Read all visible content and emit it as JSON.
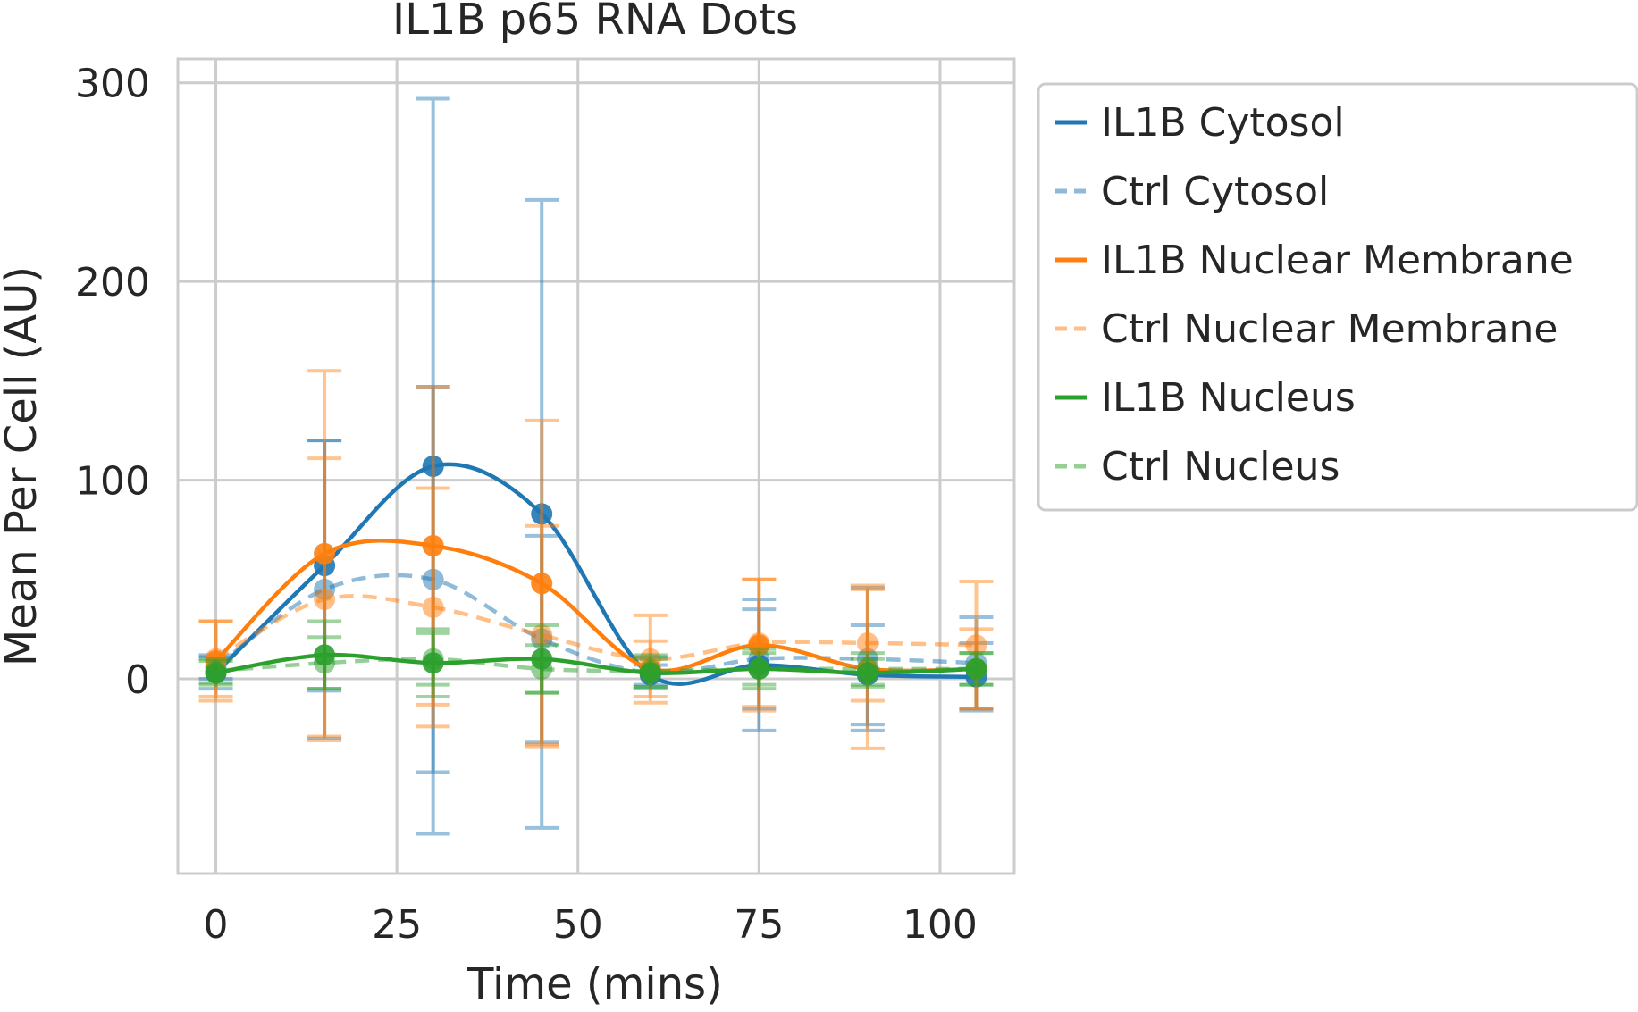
{
  "chart_data": {
    "type": "line",
    "title": "IL1B p65 RNA Dots",
    "xlabel": "Time (mins)",
    "ylabel": "Mean Per Cell (AU)",
    "x": [
      0,
      15,
      30,
      45,
      60,
      75,
      90,
      105
    ],
    "xlim": [
      -5.25,
      110.25
    ],
    "ylim": [
      -98,
      312
    ],
    "xticks": [
      0,
      25,
      50,
      75,
      100
    ],
    "yticks": [
      0,
      100,
      200,
      300
    ],
    "grid": true,
    "legend_position": "outside-right-top",
    "series": [
      {
        "name": "IL1B Cytosol",
        "color": "#1f77b4",
        "dashed": false,
        "faded": false,
        "values": [
          3,
          57,
          107,
          83,
          2,
          7,
          2,
          1
        ],
        "errors": [
          8,
          63,
          185,
          158,
          5,
          33,
          25,
          17
        ]
      },
      {
        "name": "Ctrl Cytosol",
        "color": "#1f77b4",
        "dashed": true,
        "faded": true,
        "values": [
          6,
          45,
          50,
          20,
          3,
          10,
          10,
          8
        ],
        "errors": [
          6,
          75,
          97,
          52,
          8,
          25,
          36,
          23
        ]
      },
      {
        "name": "IL1B Nuclear Membrane",
        "color": "#ff7f0e",
        "dashed": false,
        "faded": false,
        "values": [
          9,
          63,
          67,
          48,
          5,
          17,
          5,
          5
        ],
        "errors": [
          20,
          92,
          80,
          82,
          14,
          33,
          40,
          20
        ]
      },
      {
        "name": "Ctrl Nuclear Membrane",
        "color": "#ff7f0e",
        "dashed": true,
        "faded": true,
        "values": [
          10,
          40,
          36,
          22,
          10,
          18,
          18,
          17
        ],
        "errors": [
          19,
          71,
          60,
          55,
          22,
          32,
          29,
          32
        ]
      },
      {
        "name": "IL1B Nucleus",
        "color": "#2ca02c",
        "dashed": false,
        "faded": false,
        "values": [
          3,
          12,
          8,
          10,
          3,
          5,
          3,
          5
        ],
        "errors": [
          6,
          17,
          17,
          17,
          7,
          8,
          7,
          8
        ]
      },
      {
        "name": "Ctrl Nucleus",
        "color": "#2ca02c",
        "dashed": true,
        "faded": true,
        "values": [
          4,
          8,
          10,
          5,
          4,
          5,
          5,
          5
        ],
        "errors": [
          6,
          13,
          13,
          12,
          8,
          10,
          8,
          8
        ]
      }
    ]
  }
}
